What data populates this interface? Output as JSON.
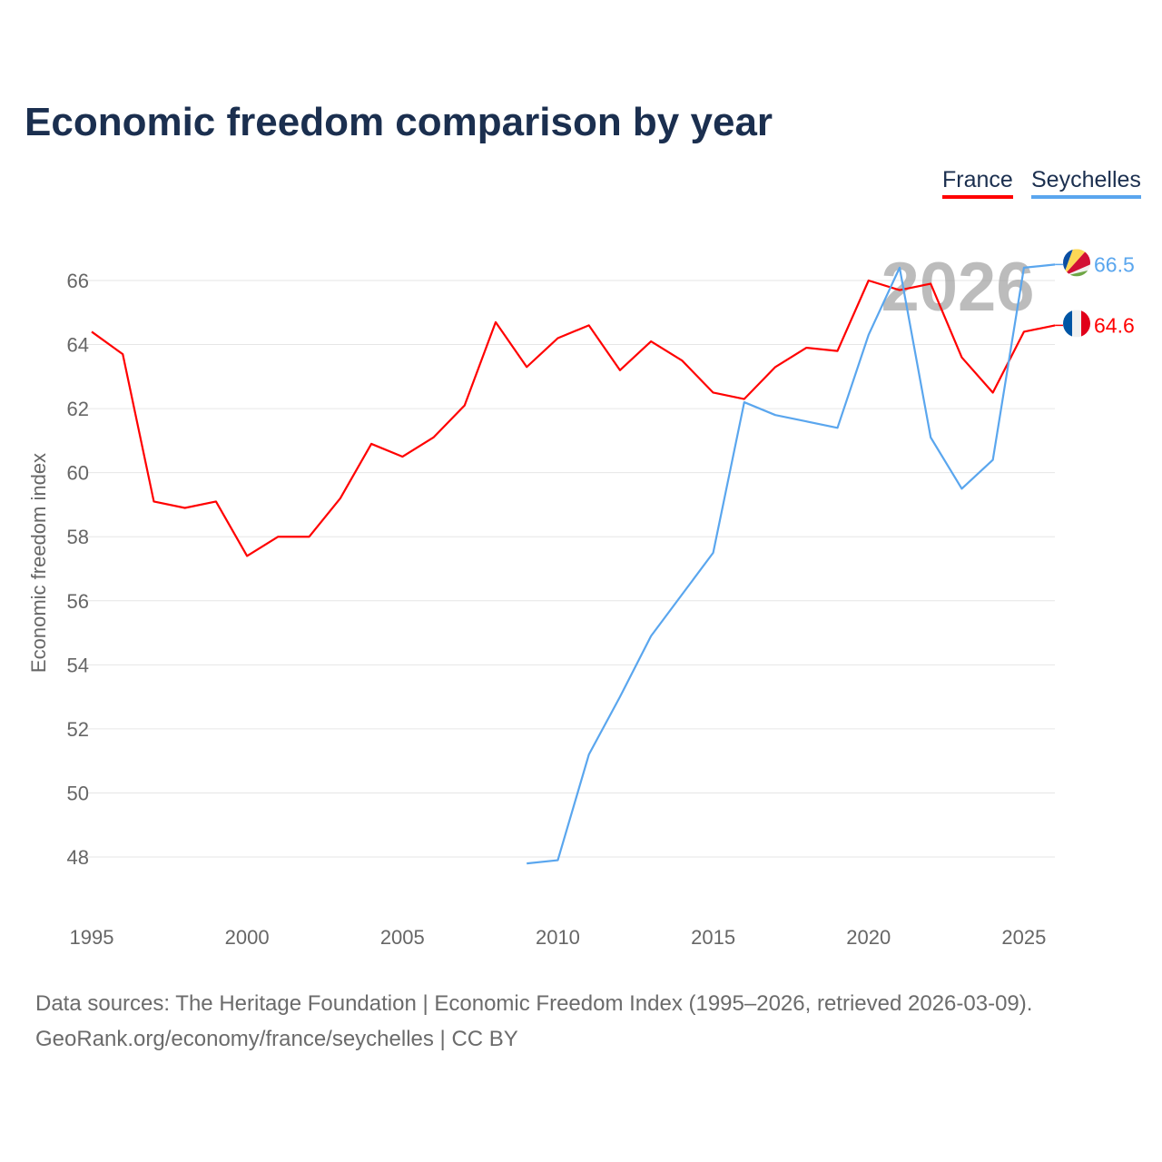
{
  "chart_data": {
    "type": "line",
    "title": "Economic freedom comparison by year",
    "xlabel": "",
    "ylabel": "Economic freedom index",
    "xlim": [
      1995,
      2026
    ],
    "ylim": [
      46.5,
      67.5
    ],
    "yticks": [
      48,
      50,
      52,
      54,
      56,
      58,
      60,
      62,
      64,
      66
    ],
    "xticks": [
      1995,
      2000,
      2005,
      2010,
      2015,
      2020,
      2025
    ],
    "grid": true,
    "legend_placement": "top-right",
    "watermark_year": "2026",
    "series": [
      {
        "name": "France",
        "color": "#ff0000",
        "end_label": "64.6",
        "x": [
          1995,
          1996,
          1997,
          1998,
          1999,
          2000,
          2001,
          2002,
          2003,
          2004,
          2005,
          2006,
          2007,
          2008,
          2009,
          2010,
          2011,
          2012,
          2013,
          2014,
          2015,
          2016,
          2017,
          2018,
          2019,
          2020,
          2021,
          2022,
          2023,
          2024,
          2025,
          2026
        ],
        "values": [
          64.4,
          63.7,
          59.1,
          58.9,
          59.1,
          57.4,
          58.0,
          58.0,
          59.2,
          60.9,
          60.5,
          61.1,
          62.1,
          64.7,
          63.3,
          64.2,
          64.6,
          63.2,
          64.1,
          63.5,
          62.5,
          62.3,
          63.3,
          63.9,
          63.8,
          66.0,
          65.7,
          65.9,
          63.6,
          62.5,
          64.4,
          64.6
        ]
      },
      {
        "name": "Seychelles",
        "color": "#5aa6ee",
        "end_label": "66.5",
        "x": [
          2009,
          2010,
          2011,
          2012,
          2013,
          2014,
          2015,
          2016,
          2017,
          2018,
          2019,
          2020,
          2021,
          2022,
          2023,
          2024,
          2025,
          2026
        ],
        "values": [
          47.8,
          47.9,
          51.2,
          53.0,
          54.9,
          56.2,
          57.5,
          62.2,
          61.8,
          61.6,
          61.4,
          64.3,
          66.4,
          61.1,
          59.5,
          60.4,
          66.4,
          66.5
        ]
      }
    ]
  },
  "source": {
    "line1": "Data sources: The Heritage Foundation | Economic Freedom Index (1995–2026, retrieved 2026-03-09).",
    "line2": "GeoRank.org/economy/france/seychelles | CC BY"
  }
}
